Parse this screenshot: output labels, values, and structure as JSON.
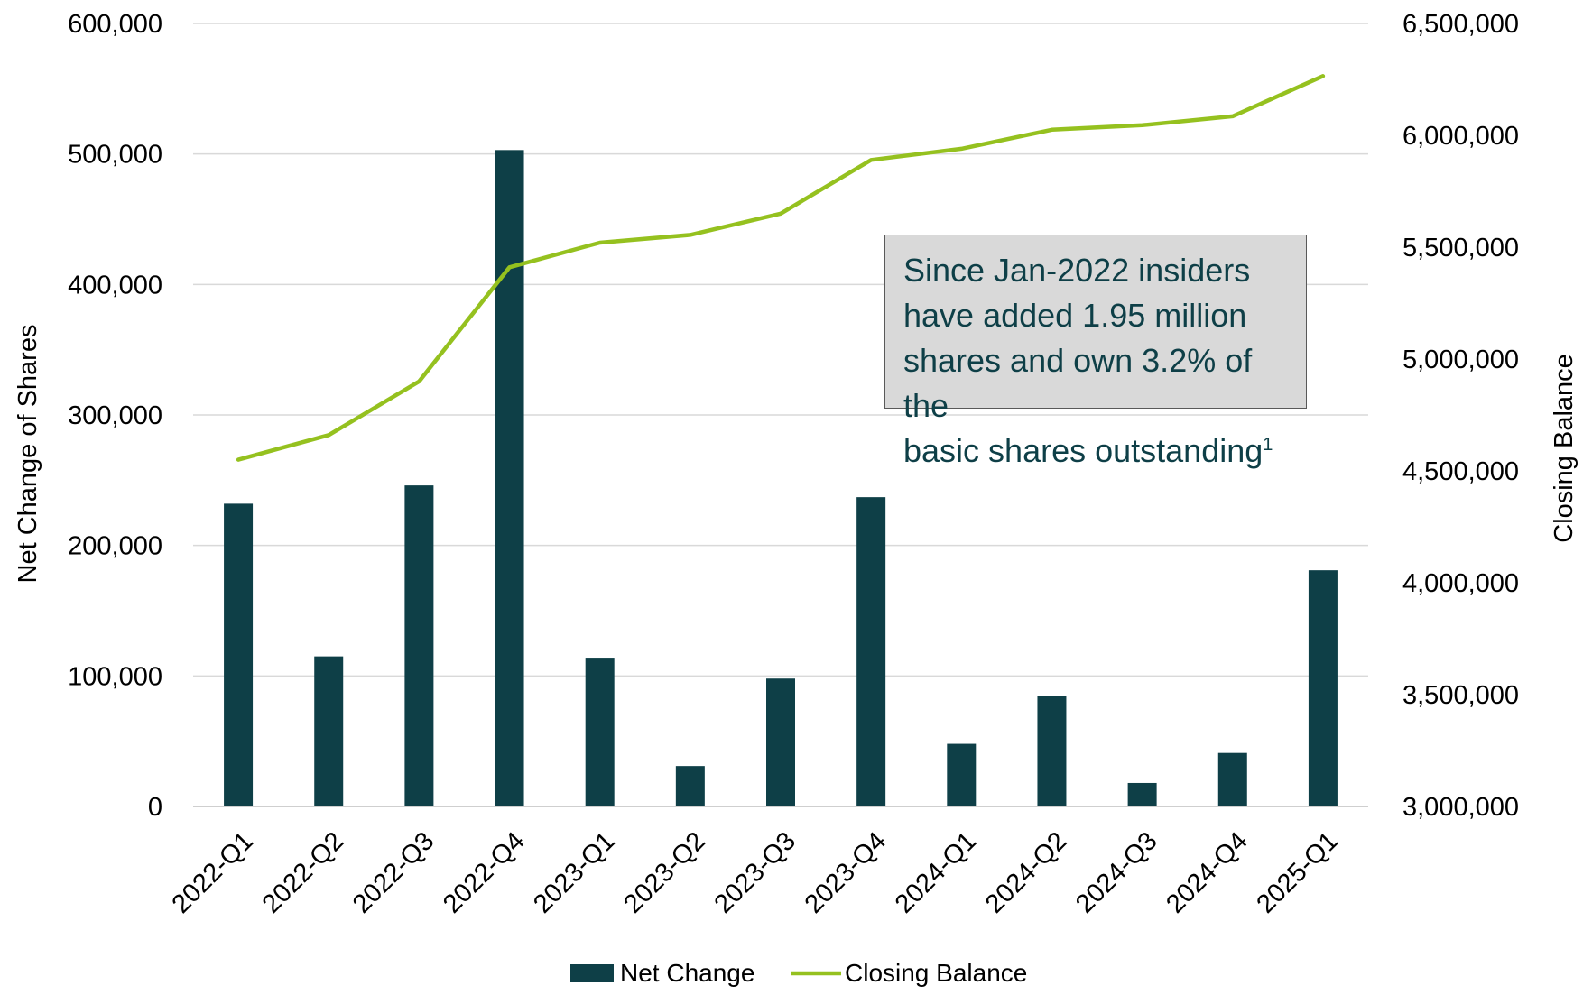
{
  "chart_data": {
    "type": "bar",
    "categories": [
      "2022-Q1",
      "2022-Q2",
      "2022-Q3",
      "2022-Q4",
      "2023-Q1",
      "2023-Q2",
      "2023-Q3",
      "2023-Q4",
      "2024-Q1",
      "2024-Q2",
      "2024-Q3",
      "2024-Q4",
      "2025-Q1"
    ],
    "series": [
      {
        "name": "Net Change",
        "type": "bar",
        "axis": "left",
        "color": "#0e3f47",
        "values": [
          232000,
          115000,
          246000,
          503000,
          114000,
          31000,
          98000,
          237000,
          48000,
          85000,
          18000,
          41000,
          181000
        ]
      },
      {
        "name": "Closing Balance",
        "type": "line",
        "axis": "right",
        "color": "#95c11f",
        "values": [
          4550000,
          4660000,
          4900000,
          5410000,
          5520000,
          5555000,
          5650000,
          5890000,
          5940000,
          6025000,
          6045000,
          6085000,
          6265000
        ]
      }
    ],
    "ylabel": "Net Change of Shares",
    "ylim": [
      0,
      600000
    ],
    "yticks": [
      "0",
      "100,000",
      "200,000",
      "300,000",
      "400,000",
      "500,000",
      "600,000"
    ],
    "y2label": "Closing Balance",
    "y2lim": [
      3000000,
      6500000
    ],
    "y2ticks": [
      "3,000,000",
      "3,500,000",
      "4,000,000",
      "4,500,000",
      "5,000,000",
      "5,500,000",
      "6,000,000",
      "6,500,000"
    ],
    "grid": true,
    "legend_position": "bottom",
    "annotation": {
      "lines": [
        "Since Jan-2022 insiders",
        "have added 1.95 million",
        "shares and own 3.2% of the",
        "basic shares outstanding"
      ],
      "footnote": "1"
    }
  }
}
